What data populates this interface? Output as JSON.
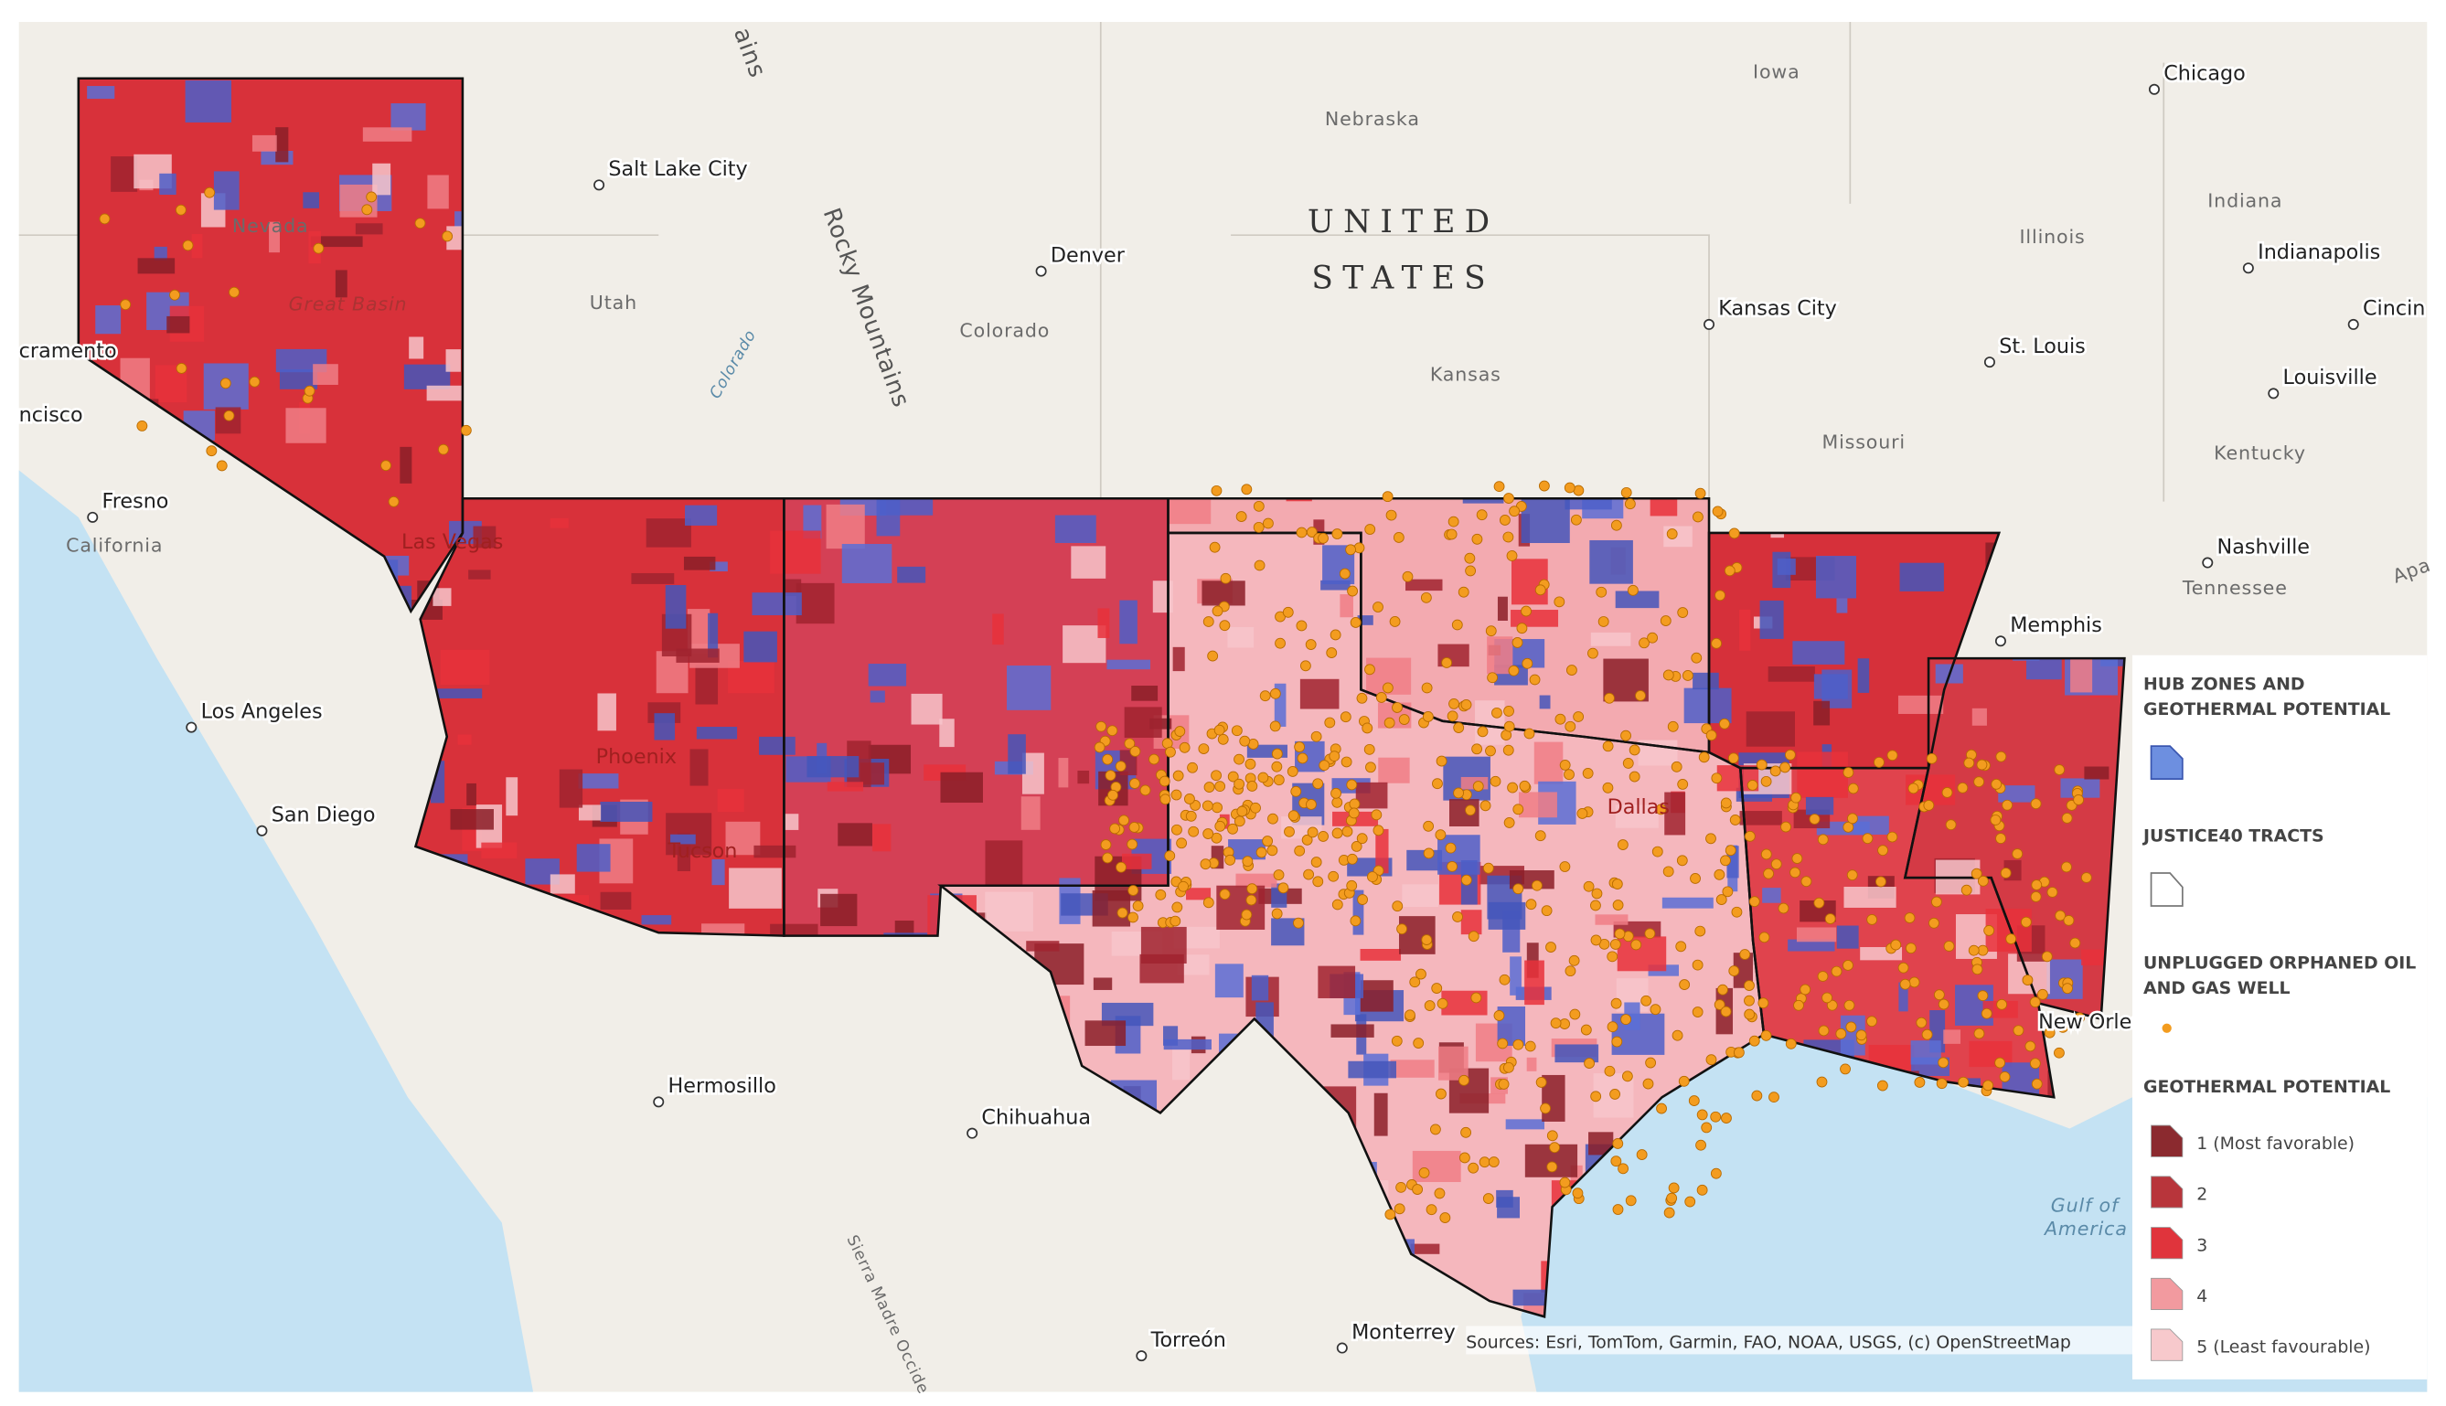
{
  "map": {
    "country_label": [
      "UNITED",
      "STATES"
    ],
    "cities": [
      "Chicago",
      "Salt Lake City",
      "Denver",
      "Kansas City",
      "St. Louis",
      "Indianapolis",
      "Cincin",
      "Louisville",
      "Nashville",
      "Memphis",
      "Fresno",
      "Los Angeles",
      "San Diego",
      "Hermosillo",
      "Chihuahua",
      "Torreón",
      "Monterrey",
      "cramento",
      "ncisco",
      "Las Vegas",
      "Phoenix",
      "Tucson",
      "Dallas",
      "New Orleans"
    ],
    "regions": [
      "Iowa",
      "Nebraska",
      "Utah",
      "Colorado",
      "Kansas",
      "Illinois",
      "Indiana",
      "Missouri",
      "Kentucky",
      "Tennessee",
      "California",
      "Nevada",
      "Great Basin",
      "Rocky Mountains",
      "ains",
      "Gulf of",
      "America",
      "Colorado",
      "Sierra Madre Occide",
      "Apa"
    ],
    "attribution": "Sources: Esri, TomTom, Garmin, FAO, NOAA, USGS, (c) OpenStreetMap"
  },
  "legend": {
    "hub_zones": "HUB ZONES AND GEOTHERMAL POTENTIAL",
    "justice40": "JUSTICE40 TRACTS",
    "wells": "UNPLUGGED ORPHANED OIL AND GAS WELL",
    "geothermal": "GEOTHERMAL POTENTIAL",
    "classes": [
      "1 (Most favorable)",
      "2",
      "3",
      "4",
      "5 (Least favourable)"
    ]
  }
}
